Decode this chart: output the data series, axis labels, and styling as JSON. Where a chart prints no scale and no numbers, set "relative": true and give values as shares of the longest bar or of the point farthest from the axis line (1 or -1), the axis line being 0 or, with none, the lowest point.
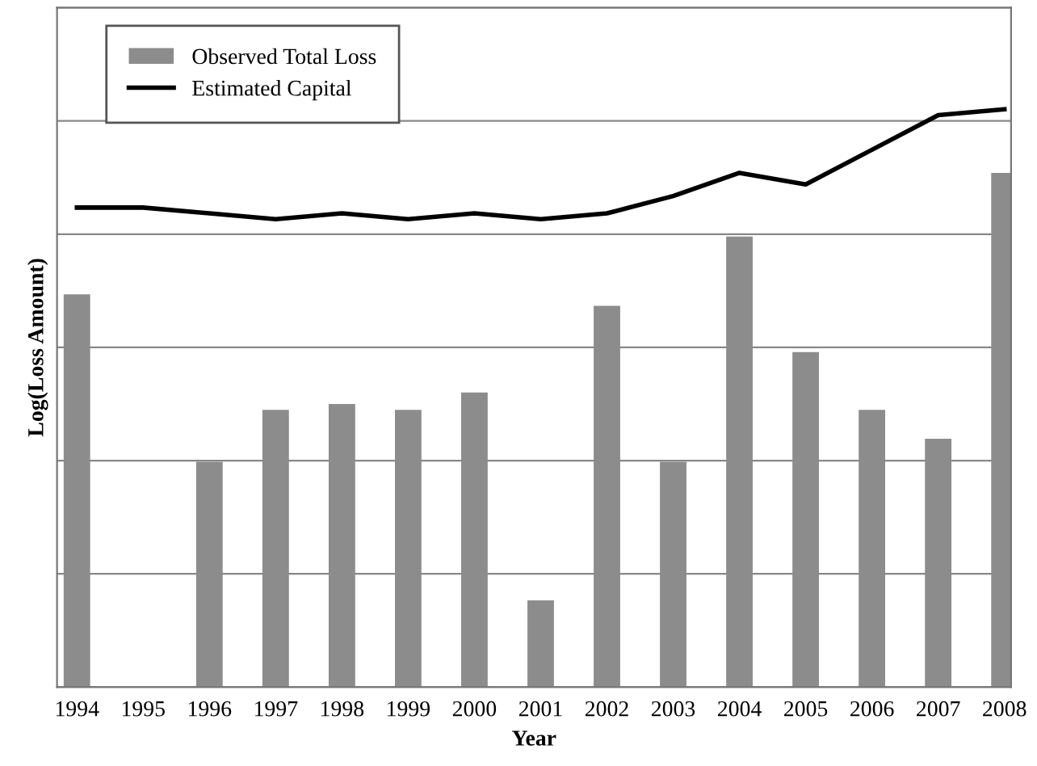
{
  "chart_data": {
    "type": "bar",
    "relative": true,
    "xlabel": "Year",
    "ylabel": "Log(Loss Amount)",
    "categories": [
      "1994",
      "1995",
      "1996",
      "1997",
      "1998",
      "1999",
      "2000",
      "2001",
      "2002",
      "2003",
      "2004",
      "2005",
      "2006",
      "2007",
      "2008"
    ],
    "series": [
      {
        "name": "Observed Total Loss",
        "color": "#8c8c8c",
        "values": [
          0.68,
          null,
          0.39,
          0.48,
          0.49,
          0.48,
          0.51,
          0.15,
          0.66,
          0.39,
          0.78,
          0.58,
          0.48,
          0.43,
          0.89
        ]
      },
      {
        "name": "Estimated Capital",
        "type": "line",
        "color": "#000000",
        "values": [
          0.83,
          0.83,
          0.82,
          0.81,
          0.82,
          0.81,
          0.82,
          0.81,
          0.82,
          0.85,
          0.89,
          0.87,
          0.93,
          0.99,
          1.0
        ]
      }
    ],
    "grid": "y",
    "legend": "top left"
  }
}
